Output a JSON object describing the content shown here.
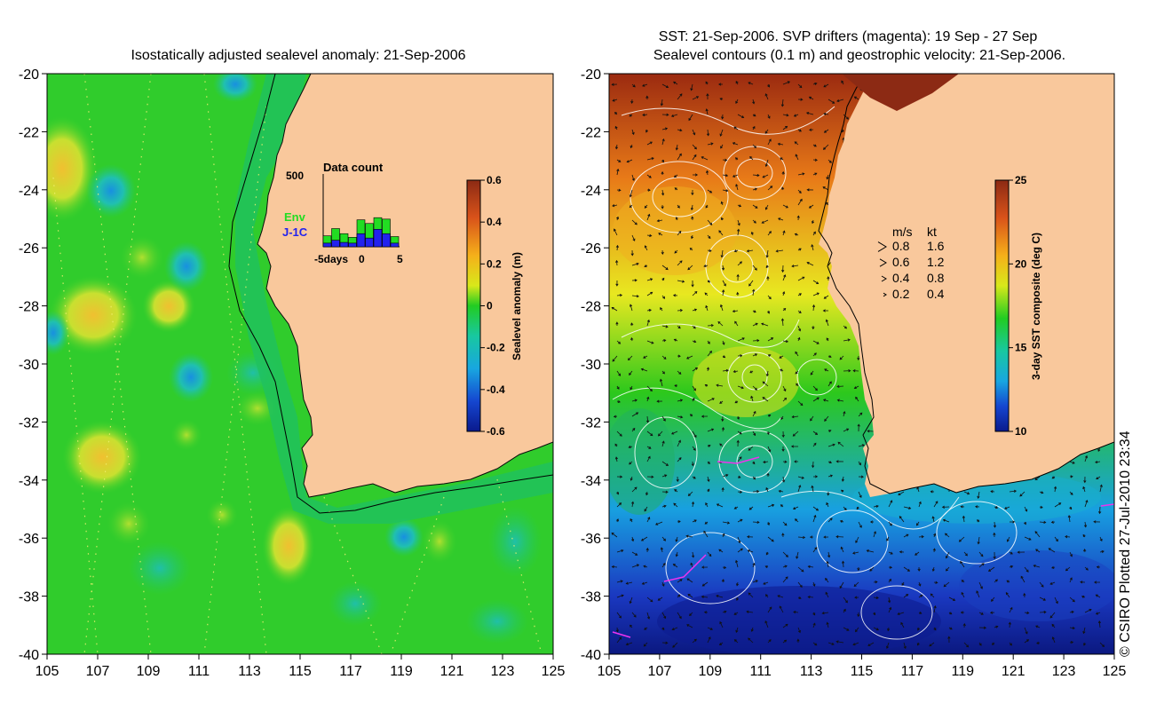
{
  "left_panel": {
    "title": "Isostatically adjusted sealevel anomaly: 21-Sep-2006",
    "colorbar": {
      "label": "Sealevel anomaly (m)",
      "ticks": [
        "0.6",
        "0.4",
        "0.2",
        "0",
        "-0.2",
        "-0.4",
        "-0.6"
      ],
      "colors": [
        "#0a1a8c",
        "#1546d0",
        "#1aa6e0",
        "#19c7a0",
        "#1ec81e",
        "#7ee01e",
        "#e8e81a",
        "#f5a11a",
        "#d9531a",
        "#8c2a14"
      ]
    },
    "inset": {
      "title": "Data count",
      "ymax_label": "500",
      "xtick_labels": [
        "-5days",
        "0",
        "5"
      ],
      "legend": [
        {
          "label": "Env",
          "color": "#22dd22"
        },
        {
          "label": "J-1C",
          "color": "#2222ee"
        }
      ],
      "bars": [
        {
          "day": -4,
          "env": 75,
          "j1c": 25
        },
        {
          "day": -3,
          "env": 125,
          "j1c": 45
        },
        {
          "day": -2,
          "env": 90,
          "j1c": 30
        },
        {
          "day": -1,
          "env": 65,
          "j1c": 25
        },
        {
          "day": 0,
          "env": 185,
          "j1c": 90
        },
        {
          "day": 1,
          "env": 160,
          "j1c": 60
        },
        {
          "day": 2,
          "env": 200,
          "j1c": 120
        },
        {
          "day": 3,
          "env": 190,
          "j1c": 90
        },
        {
          "day": 4,
          "env": 70,
          "j1c": 25
        }
      ]
    }
  },
  "right_panel": {
    "title_line1": "SST: 21-Sep-2006. SVP drifters (magenta): 19 Sep - 27 Sep",
    "title_line2": "Sealevel contours (0.1 m) and geostrophic velocity: 21-Sep-2006.",
    "colorbar": {
      "label": "3-day SST composite (deg C)",
      "ticks": [
        "25",
        "20",
        "15",
        "10"
      ],
      "colors": [
        "#0a1a8c",
        "#1546d0",
        "#1aa6e0",
        "#19c7a0",
        "#1ec81e",
        "#7ee01e",
        "#e8e81a",
        "#f5a11a",
        "#d9531a",
        "#8c2a14"
      ]
    },
    "velocity_legend": {
      "header_ms": "m/s",
      "header_kt": "kt",
      "rows": [
        {
          "ms": "0.8",
          "kt": "1.6"
        },
        {
          "ms": "0.6",
          "kt": "1.2"
        },
        {
          "ms": "0.4",
          "kt": "0.8"
        },
        {
          "ms": "0.2",
          "kt": "0.4"
        }
      ]
    }
  },
  "axes": {
    "y_ticks": [
      "-20",
      "-22",
      "-24",
      "-26",
      "-28",
      "-30",
      "-32",
      "-34",
      "-36",
      "-38",
      "-40"
    ],
    "x_ticks": [
      "105",
      "107",
      "109",
      "111",
      "113",
      "115",
      "117",
      "119",
      "121",
      "123",
      "125"
    ],
    "lon_range": [
      105,
      125
    ],
    "lat_range": [
      -40,
      -20
    ]
  },
  "credit": "© CSIRO Plotted 27-Jul-2010 23:34",
  "colors": {
    "land": "#f9c89c",
    "ocean_sla": "#22cc33",
    "contour": "#ffffff",
    "drifter": "#ee33ee"
  }
}
